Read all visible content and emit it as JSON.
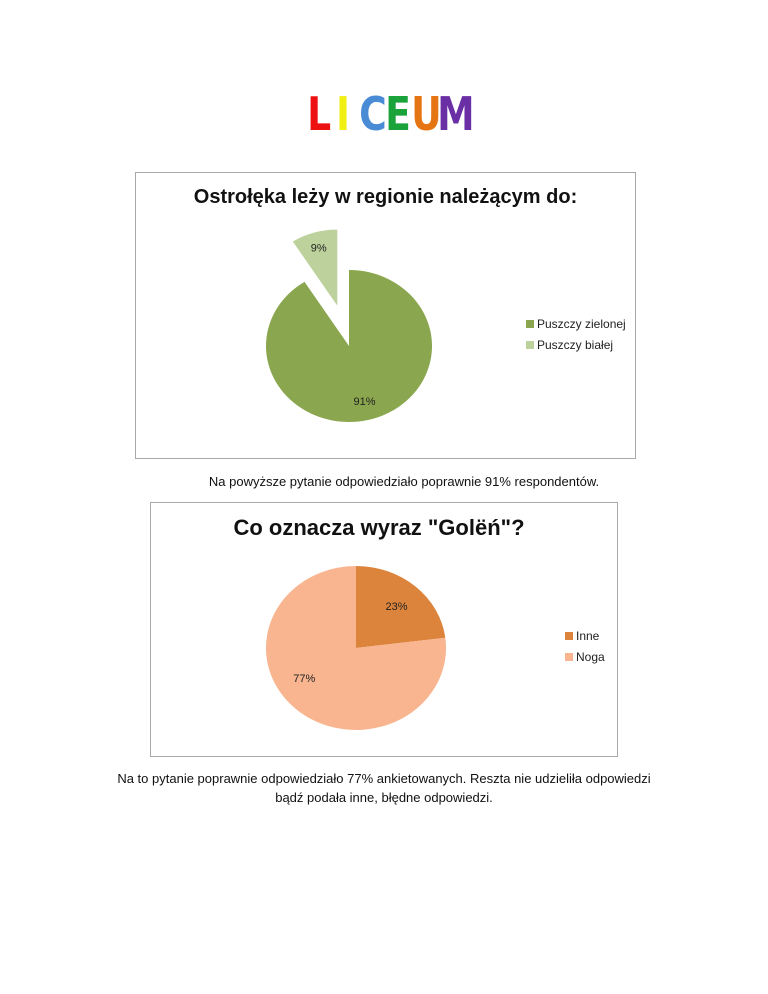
{
  "logo": {
    "letters": [
      {
        "ch": "L",
        "color": "#ee1111"
      },
      {
        "ch": "I",
        "color": "#f2ef12"
      },
      {
        "ch": "C",
        "color": "#4a8bd6"
      },
      {
        "ch": "E",
        "color": "#1aa33a"
      },
      {
        "ch": "U",
        "color": "#e57512"
      },
      {
        "ch": "M",
        "color": "#6a2fa5"
      }
    ]
  },
  "chart_data": [
    {
      "type": "pie",
      "title": "Ostrołęka leży w regionie należącym do:",
      "slices": [
        {
          "name": "Puszczy zielonej",
          "value": 91,
          "label": "91%",
          "color": "#8aa64e",
          "exploded": false
        },
        {
          "name": "Puszczy białej",
          "value": 9,
          "label": "9%",
          "color": "#bcd19b",
          "exploded": true
        }
      ],
      "legend_position": "right"
    },
    {
      "type": "pie",
      "title": "Co oznacza wyraz \"Golëń\"?",
      "slices": [
        {
          "name": "Inne",
          "value": 23,
          "label": "23%",
          "color": "#dc843c",
          "exploded": false
        },
        {
          "name": "Noga",
          "value": 77,
          "label": "77%",
          "color": "#f8b58f",
          "exploded": false
        }
      ],
      "legend_position": "right"
    }
  ],
  "captions": [
    "Na powyższe pytanie odpowiedziało poprawnie 91% respondentów.",
    "Na to pytanie poprawnie odpowiedziało 77% ankietowanych. Reszta nie udzieliła odpowiedzi",
    "bądź podała inne, błędne odpowiedzi."
  ]
}
